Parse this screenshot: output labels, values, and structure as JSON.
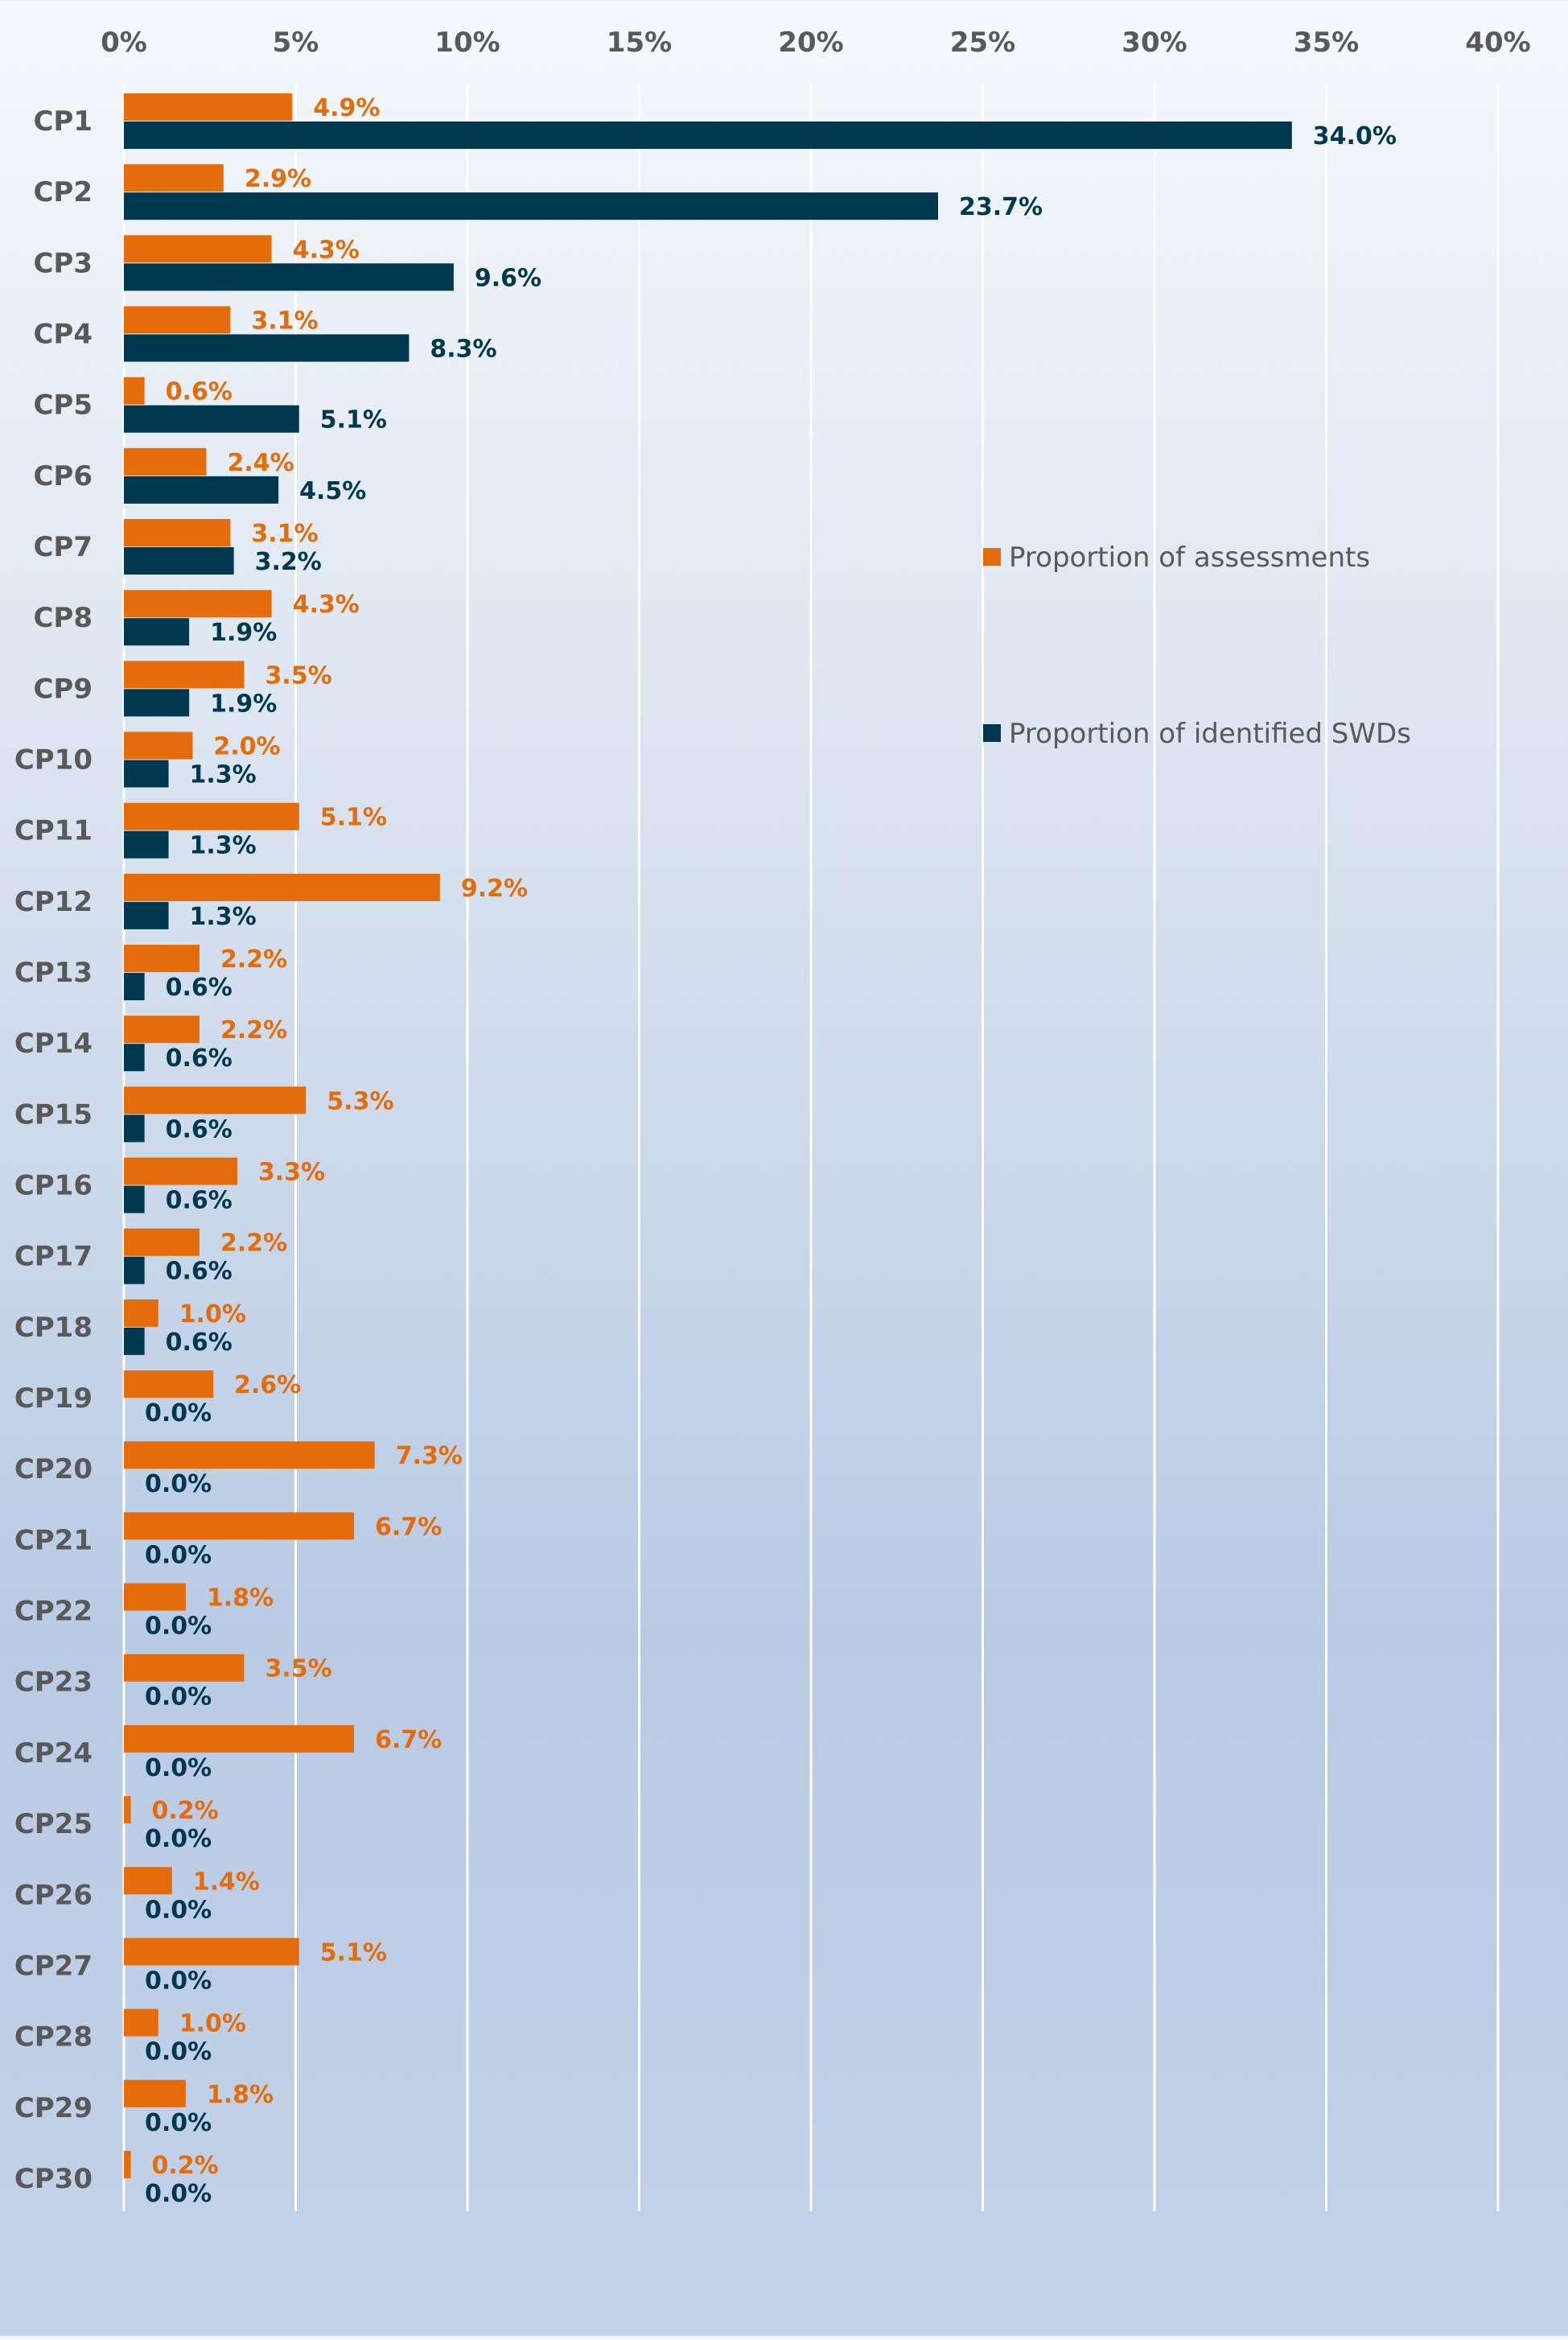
{
  "chart_data": {
    "type": "bar",
    "orientation": "horizontal",
    "xlim": [
      0,
      40
    ],
    "x_ticks": [
      "0%",
      "5%",
      "10%",
      "15%",
      "20%",
      "25%",
      "30%",
      "35%",
      "40%"
    ],
    "x_axis_position": "top",
    "grid": true,
    "legend_position": "right",
    "categories": [
      "CP1",
      "CP2",
      "CP3",
      "CP4",
      "CP5",
      "CP6",
      "CP7",
      "CP8",
      "CP9",
      "CP10",
      "CP11",
      "CP12",
      "CP13",
      "CP14",
      "CP15",
      "CP16",
      "CP17",
      "CP18",
      "CP19",
      "CP20",
      "CP21",
      "CP22",
      "CP23",
      "CP24",
      "CP25",
      "CP26",
      "CP27",
      "CP28",
      "CP29",
      "CP30"
    ],
    "series": [
      {
        "name": "Proportion of assessments",
        "color": "#e46c0a",
        "values": [
          4.9,
          2.9,
          4.3,
          3.1,
          0.6,
          2.4,
          3.1,
          4.3,
          3.5,
          2.0,
          5.1,
          9.2,
          2.2,
          2.2,
          5.3,
          3.3,
          2.2,
          1.0,
          2.6,
          7.3,
          6.7,
          1.8,
          3.5,
          6.7,
          0.2,
          1.4,
          5.1,
          1.0,
          1.8,
          0.2
        ],
        "labels": [
          "4.9%",
          "2.9%",
          "4.3%",
          "3.1%",
          "0.6%",
          "2.4%",
          "3.1%",
          "4.3%",
          "3.5%",
          "2.0%",
          "5.1%",
          "9.2%",
          "2.2%",
          "2.2%",
          "5.3%",
          "3.3%",
          "2.2%",
          "1.0%",
          "2.6%",
          "7.3%",
          "6.7%",
          "1.8%",
          "3.5%",
          "6.7%",
          "0.2%",
          "1.4%",
          "5.1%",
          "1.0%",
          "1.8%",
          "0.2%"
        ]
      },
      {
        "name": "Proportion of identified SWDs",
        "color": "#00384f",
        "values": [
          34.0,
          23.7,
          9.6,
          8.3,
          5.1,
          4.5,
          3.2,
          1.9,
          1.9,
          1.3,
          1.3,
          1.3,
          0.6,
          0.6,
          0.6,
          0.6,
          0.6,
          0.6,
          0.0,
          0.0,
          0.0,
          0.0,
          0.0,
          0.0,
          0.0,
          0.0,
          0.0,
          0.0,
          0.0,
          0.0
        ],
        "labels": [
          "34.0%",
          "23.7%",
          "9.6%",
          "8.3%",
          "5.1%",
          "4.5%",
          "3.2%",
          "1.9%",
          "1.9%",
          "1.3%",
          "1.3%",
          "1.3%",
          "0.6%",
          "0.6%",
          "0.6%",
          "0.6%",
          "0.6%",
          "0.6%",
          "0.0%",
          "0.0%",
          "0.0%",
          "0.0%",
          "0.0%",
          "0.0%",
          "0.0%",
          "0.0%",
          "0.0%",
          "0.0%",
          "0.0%",
          "0.0%"
        ]
      }
    ],
    "colors": {
      "grid": "#ffffff",
      "tick_label": "#595959",
      "category_label": "#595959",
      "legend_text": "#595959"
    }
  }
}
